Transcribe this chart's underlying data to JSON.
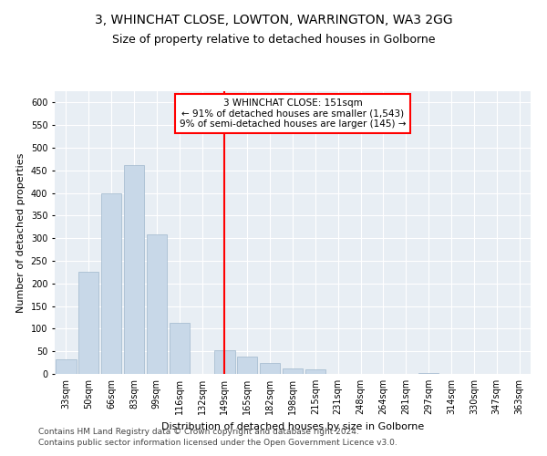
{
  "title": "3, WHINCHAT CLOSE, LOWTON, WARRINGTON, WA3 2GG",
  "subtitle": "Size of property relative to detached houses in Golborne",
  "xlabel": "Distribution of detached houses by size in Golborne",
  "ylabel": "Number of detached properties",
  "bar_labels": [
    "33sqm",
    "50sqm",
    "66sqm",
    "83sqm",
    "99sqm",
    "116sqm",
    "132sqm",
    "149sqm",
    "165sqm",
    "182sqm",
    "198sqm",
    "215sqm",
    "231sqm",
    "248sqm",
    "264sqm",
    "281sqm",
    "297sqm",
    "314sqm",
    "330sqm",
    "347sqm",
    "363sqm"
  ],
  "bar_values": [
    32,
    225,
    400,
    462,
    308,
    112,
    0,
    52,
    38,
    25,
    13,
    11,
    0,
    0,
    0,
    0,
    3,
    0,
    0,
    0,
    1
  ],
  "bar_color": "#c8d8e8",
  "bar_edgecolor": "#a0b8cc",
  "vline_x_index": 7,
  "vline_color": "red",
  "annotation_text": "3 WHINCHAT CLOSE: 151sqm\n← 91% of detached houses are smaller (1,543)\n9% of semi-detached houses are larger (145) →",
  "annotation_box_color": "white",
  "annotation_box_edgecolor": "red",
  "ylim": [
    0,
    625
  ],
  "yticks": [
    0,
    50,
    100,
    150,
    200,
    250,
    300,
    350,
    400,
    450,
    500,
    550,
    600
  ],
  "footer_line1": "Contains HM Land Registry data © Crown copyright and database right 2024.",
  "footer_line2": "Contains public sector information licensed under the Open Government Licence v3.0.",
  "background_color": "#e8eef4",
  "grid_color": "white",
  "title_fontsize": 10,
  "subtitle_fontsize": 9,
  "axis_label_fontsize": 8,
  "tick_fontsize": 7,
  "annotation_fontsize": 7.5,
  "footer_fontsize": 6.5
}
